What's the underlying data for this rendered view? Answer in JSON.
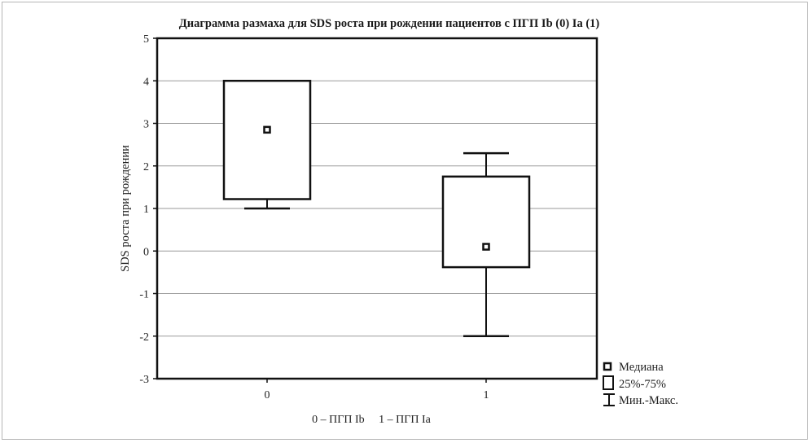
{
  "chart_data": {
    "type": "box",
    "title": "Диаграмма размаха для SDS роста при рождении пациентов с ПГП Ib (0) Ia (1)",
    "ylabel": "SDS роста при рождении",
    "xlabel": "",
    "ylim": [
      -3,
      5
    ],
    "yticks": [
      "5",
      "4",
      "3",
      "2",
      "1",
      "0",
      "-1",
      "-2",
      "-3"
    ],
    "grid": true,
    "legend_position": "bottom-right",
    "categories": [
      "0",
      "1"
    ],
    "boxes": [
      {
        "category": "0",
        "median": 2.85,
        "q1": 1.22,
        "q3": 4.0,
        "min": 1.0,
        "max": 4.0
      },
      {
        "category": "1",
        "median": 0.1,
        "q1": -0.38,
        "q3": 1.75,
        "min": -2.0,
        "max": 2.3
      }
    ],
    "legend": [
      "Медиана",
      "25%-75%",
      "Мин.-Макс."
    ],
    "footnote": "0 – ПГП Ib     1 – ПГП Ia"
  }
}
